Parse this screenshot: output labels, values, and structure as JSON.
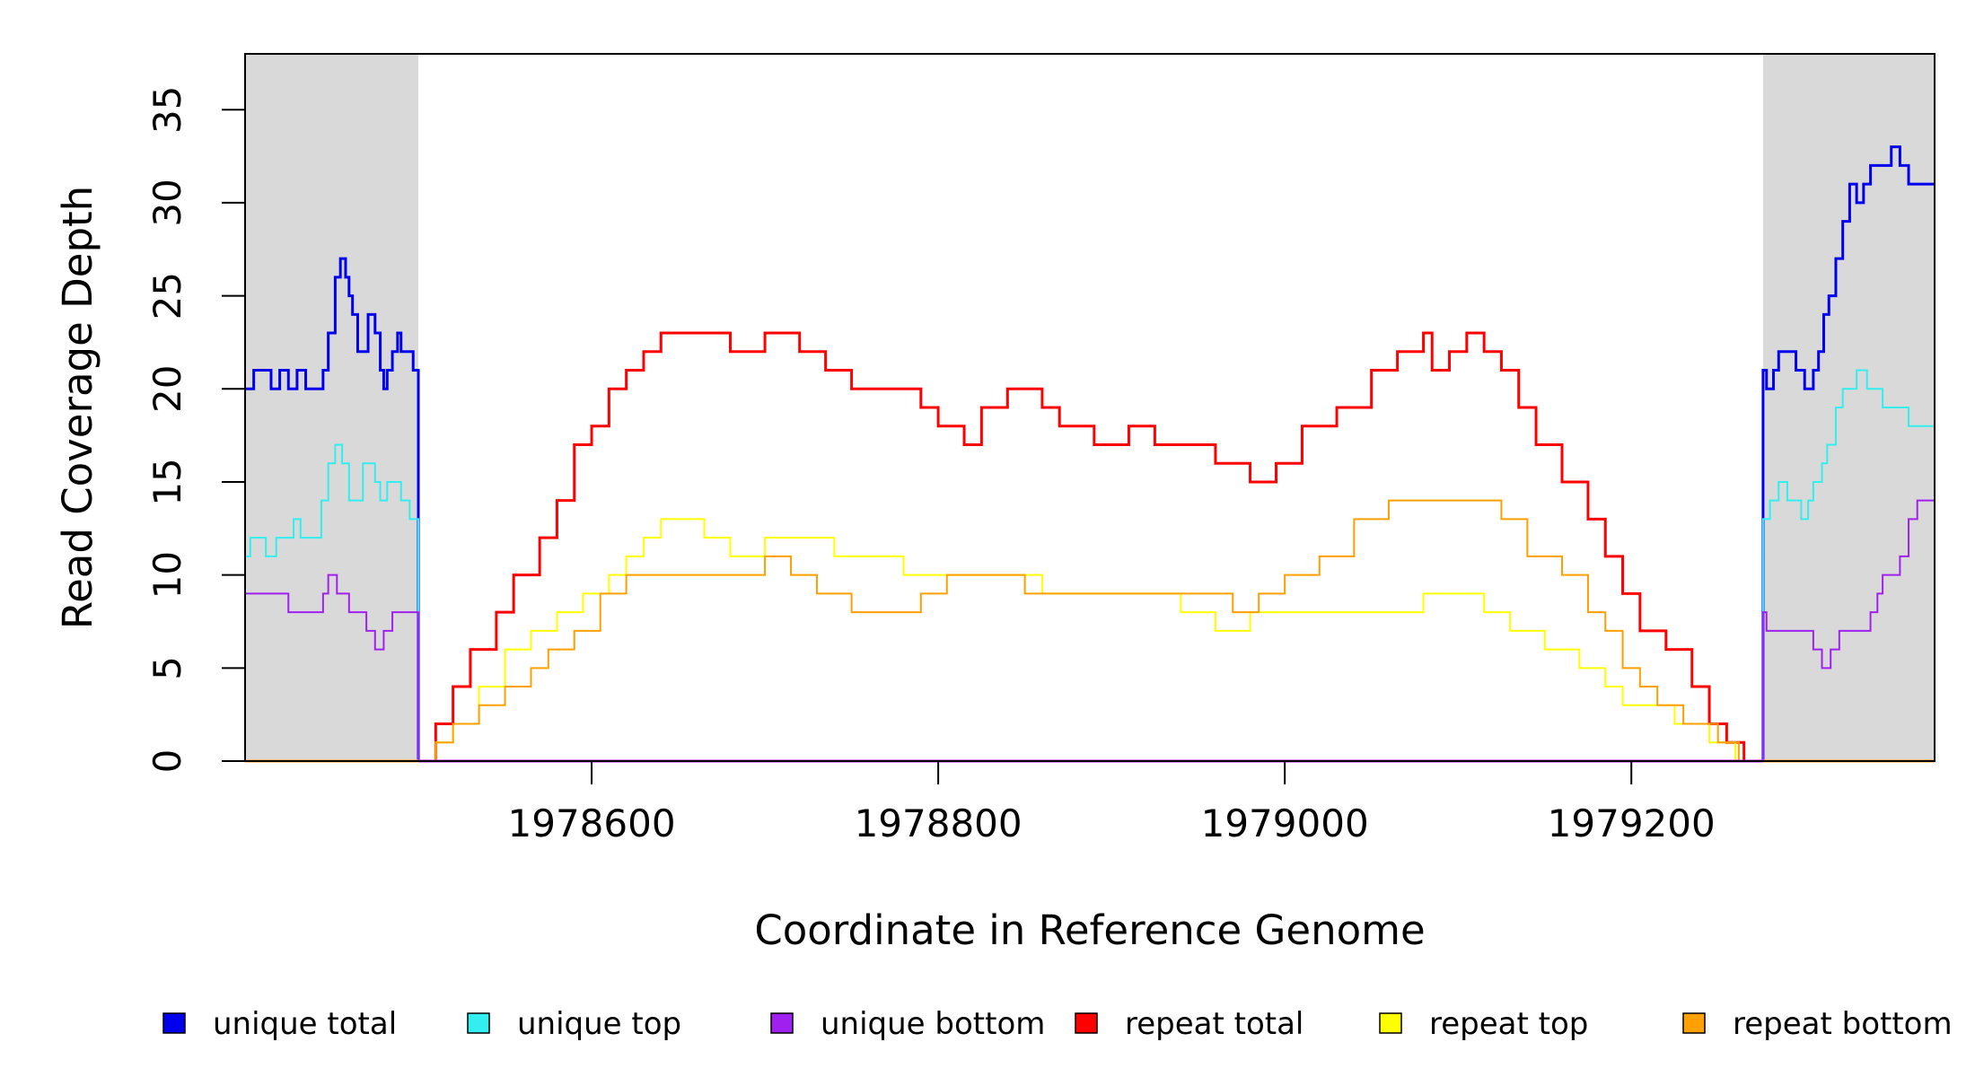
{
  "chart_data": {
    "type": "line",
    "title": "",
    "xlabel": "Coordinate in Reference Genome",
    "ylabel": "Read Coverage Depth",
    "xlim": [
      1978400,
      1979375
    ],
    "ylim": [
      0,
      38
    ],
    "x_ticks": [
      1978600,
      1978800,
      1979000,
      1979200
    ],
    "y_ticks": [
      0,
      5,
      10,
      15,
      20,
      25,
      30,
      35
    ],
    "grid": false,
    "legend_position": "bottom",
    "flank_regions": [
      [
        1978400,
        1978500
      ],
      [
        1979276,
        1979375
      ]
    ],
    "flank_color": "#d9d9d9",
    "series": [
      {
        "name": "unique total",
        "color": "#0000ee",
        "points": [
          [
            1978400,
            20
          ],
          [
            1978405,
            21
          ],
          [
            1978415,
            20
          ],
          [
            1978420,
            21
          ],
          [
            1978425,
            20
          ],
          [
            1978430,
            21
          ],
          [
            1978435,
            20
          ],
          [
            1978445,
            21
          ],
          [
            1978448,
            23
          ],
          [
            1978452,
            26
          ],
          [
            1978455,
            27
          ],
          [
            1978458,
            26
          ],
          [
            1978460,
            25
          ],
          [
            1978462,
            24
          ],
          [
            1978465,
            22
          ],
          [
            1978471,
            24
          ],
          [
            1978475,
            23
          ],
          [
            1978478,
            21
          ],
          [
            1978480,
            20
          ],
          [
            1978482,
            21
          ],
          [
            1978485,
            22
          ],
          [
            1978488,
            23
          ],
          [
            1978490,
            22
          ],
          [
            1978497,
            21
          ],
          [
            1978500,
            21
          ],
          [
            1978500,
            0
          ],
          [
            1979276,
            0
          ],
          [
            1979276,
            21
          ],
          [
            1979278,
            20
          ],
          [
            1979282,
            21
          ],
          [
            1979285,
            22
          ],
          [
            1979295,
            21
          ],
          [
            1979300,
            20
          ],
          [
            1979305,
            21
          ],
          [
            1979308,
            22
          ],
          [
            1979311,
            24
          ],
          [
            1979314,
            25
          ],
          [
            1979318,
            27
          ],
          [
            1979322,
            29
          ],
          [
            1979326,
            31
          ],
          [
            1979330,
            30
          ],
          [
            1979334,
            31
          ],
          [
            1979338,
            32
          ],
          [
            1979345,
            32
          ],
          [
            1979350,
            33
          ],
          [
            1979355,
            32
          ],
          [
            1979360,
            31
          ],
          [
            1979375,
            31
          ]
        ]
      },
      {
        "name": "unique top",
        "color": "#33eeee",
        "points": [
          [
            1978400,
            11
          ],
          [
            1978403,
            12
          ],
          [
            1978412,
            11
          ],
          [
            1978418,
            12
          ],
          [
            1978428,
            13
          ],
          [
            1978432,
            12
          ],
          [
            1978444,
            14
          ],
          [
            1978448,
            16
          ],
          [
            1978452,
            17
          ],
          [
            1978456,
            16
          ],
          [
            1978460,
            14
          ],
          [
            1978468,
            16
          ],
          [
            1978475,
            15
          ],
          [
            1978478,
            14
          ],
          [
            1978482,
            15
          ],
          [
            1978490,
            14
          ],
          [
            1978495,
            13
          ],
          [
            1978500,
            13
          ],
          [
            1978500,
            0
          ],
          [
            1979276,
            0
          ],
          [
            1979276,
            13
          ],
          [
            1979280,
            14
          ],
          [
            1979285,
            15
          ],
          [
            1979290,
            14
          ],
          [
            1979298,
            13
          ],
          [
            1979302,
            14
          ],
          [
            1979305,
            15
          ],
          [
            1979310,
            16
          ],
          [
            1979313,
            17
          ],
          [
            1979318,
            19
          ],
          [
            1979322,
            20
          ],
          [
            1979330,
            21
          ],
          [
            1979336,
            20
          ],
          [
            1979345,
            19
          ],
          [
            1979360,
            18
          ],
          [
            1979375,
            17
          ]
        ]
      },
      {
        "name": "unique bottom",
        "color": "#a020f0",
        "points": [
          [
            1978400,
            9
          ],
          [
            1978425,
            8
          ],
          [
            1978445,
            9
          ],
          [
            1978448,
            10
          ],
          [
            1978453,
            9
          ],
          [
            1978460,
            8
          ],
          [
            1978470,
            7
          ],
          [
            1978475,
            6
          ],
          [
            1978480,
            7
          ],
          [
            1978485,
            8
          ],
          [
            1978500,
            8
          ],
          [
            1978500,
            0
          ],
          [
            1979276,
            0
          ],
          [
            1979276,
            8
          ],
          [
            1979278,
            7
          ],
          [
            1979300,
            7
          ],
          [
            1979305,
            6
          ],
          [
            1979310,
            5
          ],
          [
            1979315,
            6
          ],
          [
            1979320,
            7
          ],
          [
            1979335,
            7
          ],
          [
            1979338,
            8
          ],
          [
            1979342,
            9
          ],
          [
            1979345,
            10
          ],
          [
            1979355,
            11
          ],
          [
            1979360,
            13
          ],
          [
            1979365,
            14
          ],
          [
            1979375,
            14
          ]
        ]
      },
      {
        "name": "repeat total",
        "color": "#ff0000",
        "points": [
          [
            1978500,
            0
          ],
          [
            1978510,
            2
          ],
          [
            1978520,
            4
          ],
          [
            1978530,
            6
          ],
          [
            1978545,
            8
          ],
          [
            1978555,
            10
          ],
          [
            1978570,
            12
          ],
          [
            1978580,
            14
          ],
          [
            1978590,
            17
          ],
          [
            1978600,
            18
          ],
          [
            1978610,
            20
          ],
          [
            1978620,
            21
          ],
          [
            1978630,
            22
          ],
          [
            1978640,
            23
          ],
          [
            1978660,
            23
          ],
          [
            1978680,
            22
          ],
          [
            1978700,
            23
          ],
          [
            1978720,
            22
          ],
          [
            1978735,
            21
          ],
          [
            1978750,
            20
          ],
          [
            1978770,
            20
          ],
          [
            1978790,
            19
          ],
          [
            1978800,
            18
          ],
          [
            1978815,
            17
          ],
          [
            1978825,
            19
          ],
          [
            1978840,
            20
          ],
          [
            1978860,
            19
          ],
          [
            1978870,
            18
          ],
          [
            1978890,
            17
          ],
          [
            1978910,
            18
          ],
          [
            1978925,
            17
          ],
          [
            1978945,
            17
          ],
          [
            1978960,
            16
          ],
          [
            1978980,
            15
          ],
          [
            1978995,
            16
          ],
          [
            1979010,
            18
          ],
          [
            1979030,
            19
          ],
          [
            1979050,
            21
          ],
          [
            1979065,
            22
          ],
          [
            1979080,
            23
          ],
          [
            1979085,
            21
          ],
          [
            1979095,
            22
          ],
          [
            1979105,
            23
          ],
          [
            1979115,
            22
          ],
          [
            1979125,
            21
          ],
          [
            1979135,
            19
          ],
          [
            1979145,
            17
          ],
          [
            1979160,
            15
          ],
          [
            1979175,
            13
          ],
          [
            1979185,
            11
          ],
          [
            1979195,
            9
          ],
          [
            1979205,
            7
          ],
          [
            1979220,
            6
          ],
          [
            1979235,
            4
          ],
          [
            1979245,
            2
          ],
          [
            1979255,
            1
          ],
          [
            1979265,
            0
          ],
          [
            1979276,
            0
          ]
        ]
      },
      {
        "name": "repeat top",
        "color": "#ffff00",
        "points": [
          [
            1978500,
            0
          ],
          [
            1978510,
            1
          ],
          [
            1978520,
            2
          ],
          [
            1978535,
            4
          ],
          [
            1978550,
            6
          ],
          [
            1978565,
            7
          ],
          [
            1978580,
            8
          ],
          [
            1978595,
            9
          ],
          [
            1978610,
            10
          ],
          [
            1978620,
            11
          ],
          [
            1978630,
            12
          ],
          [
            1978640,
            13
          ],
          [
            1978650,
            13
          ],
          [
            1978665,
            12
          ],
          [
            1978680,
            11
          ],
          [
            1978700,
            12
          ],
          [
            1978720,
            12
          ],
          [
            1978740,
            11
          ],
          [
            1978760,
            11
          ],
          [
            1978780,
            10
          ],
          [
            1978800,
            10
          ],
          [
            1978820,
            10
          ],
          [
            1978840,
            10
          ],
          [
            1978860,
            9
          ],
          [
            1978880,
            9
          ],
          [
            1978900,
            9
          ],
          [
            1978920,
            9
          ],
          [
            1978940,
            8
          ],
          [
            1978960,
            7
          ],
          [
            1978980,
            8
          ],
          [
            1979000,
            8
          ],
          [
            1979020,
            8
          ],
          [
            1979040,
            8
          ],
          [
            1979060,
            8
          ],
          [
            1979080,
            9
          ],
          [
            1979100,
            9
          ],
          [
            1979115,
            8
          ],
          [
            1979130,
            7
          ],
          [
            1979150,
            6
          ],
          [
            1979170,
            5
          ],
          [
            1979185,
            4
          ],
          [
            1979195,
            3
          ],
          [
            1979210,
            3
          ],
          [
            1979225,
            2
          ],
          [
            1979245,
            1
          ],
          [
            1979260,
            0
          ],
          [
            1979276,
            0
          ]
        ]
      },
      {
        "name": "repeat bottom",
        "color": "#ff9f00",
        "points": [
          [
            1978500,
            0
          ],
          [
            1978510,
            1
          ],
          [
            1978520,
            2
          ],
          [
            1978535,
            3
          ],
          [
            1978550,
            4
          ],
          [
            1978565,
            5
          ],
          [
            1978575,
            6
          ],
          [
            1978590,
            7
          ],
          [
            1978605,
            9
          ],
          [
            1978620,
            10
          ],
          [
            1978640,
            10
          ],
          [
            1978660,
            10
          ],
          [
            1978680,
            10
          ],
          [
            1978700,
            11
          ],
          [
            1978715,
            10
          ],
          [
            1978730,
            9
          ],
          [
            1978750,
            8
          ],
          [
            1978770,
            8
          ],
          [
            1978790,
            9
          ],
          [
            1978805,
            10
          ],
          [
            1978830,
            10
          ],
          [
            1978850,
            9
          ],
          [
            1978870,
            9
          ],
          [
            1978890,
            9
          ],
          [
            1978910,
            9
          ],
          [
            1978930,
            9
          ],
          [
            1978950,
            9
          ],
          [
            1978970,
            8
          ],
          [
            1978985,
            9
          ],
          [
            1979000,
            10
          ],
          [
            1979020,
            11
          ],
          [
            1979040,
            13
          ],
          [
            1979060,
            14
          ],
          [
            1979075,
            14
          ],
          [
            1979090,
            14
          ],
          [
            1979110,
            14
          ],
          [
            1979125,
            13
          ],
          [
            1979140,
            11
          ],
          [
            1979160,
            10
          ],
          [
            1979175,
            8
          ],
          [
            1979185,
            7
          ],
          [
            1979195,
            5
          ],
          [
            1979205,
            4
          ],
          [
            1979215,
            3
          ],
          [
            1979230,
            2
          ],
          [
            1979250,
            1
          ],
          [
            1979262,
            0
          ],
          [
            1979276,
            0
          ]
        ]
      }
    ]
  }
}
